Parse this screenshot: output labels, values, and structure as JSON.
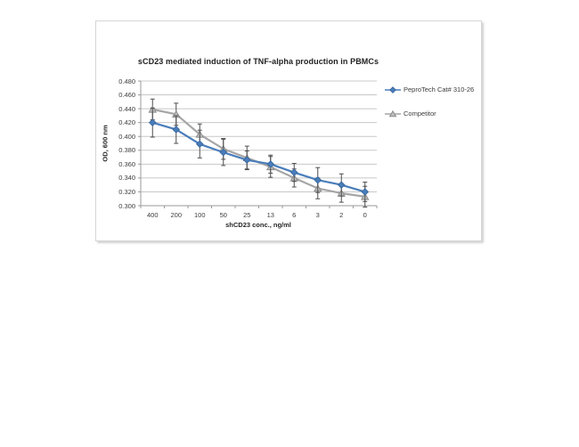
{
  "page": {
    "background": "#ffffff"
  },
  "chart_data": {
    "type": "line",
    "title": "sCD23 mediated induction of TNF-alpha production in PBMCs",
    "xlabel": "shCD23 conc., ng/ml",
    "ylabel": "OD, 600 nm",
    "categories": [
      "400",
      "200",
      "100",
      "50",
      "25",
      "13",
      "6",
      "3",
      "2",
      "0"
    ],
    "y_ticks": [
      "0.480",
      "0.460",
      "0.440",
      "0.420",
      "0.400",
      "0.380",
      "0.360",
      "0.340",
      "0.320",
      "0.300"
    ],
    "ylim": [
      0.3,
      0.48
    ],
    "y_step": 0.02,
    "grid": true,
    "legend_position": "right",
    "error_bar_color": "#4d4d4d",
    "axis_color": "#9a9a9a",
    "gridline_color": "#c8c8c8",
    "series": [
      {
        "name": "PeproTech Cat# 310-26",
        "marker": "diamond",
        "color": "#4a7ebb",
        "marker_fill": "#4a7ebb",
        "marker_stroke": "#3a6aa0",
        "values": [
          0.42,
          0.41,
          0.389,
          0.377,
          0.366,
          0.36,
          0.348,
          0.337,
          0.33,
          0.32
        ],
        "errors": [
          0.021,
          0.02,
          0.02,
          0.019,
          0.013,
          0.013,
          0.013,
          0.018,
          0.016,
          0.014
        ]
      },
      {
        "name": "Competitor",
        "marker": "triangle",
        "color": "#a6a6a6",
        "marker_fill": "#bfbfbf",
        "marker_stroke": "#8c8c8c",
        "values": [
          0.439,
          0.432,
          0.403,
          0.382,
          0.369,
          0.356,
          0.34,
          0.325,
          0.318,
          0.313
        ],
        "errors": [
          0.015,
          0.016,
          0.015,
          0.015,
          0.017,
          0.015,
          0.013,
          0.015,
          0.013,
          0.015
        ]
      }
    ]
  }
}
